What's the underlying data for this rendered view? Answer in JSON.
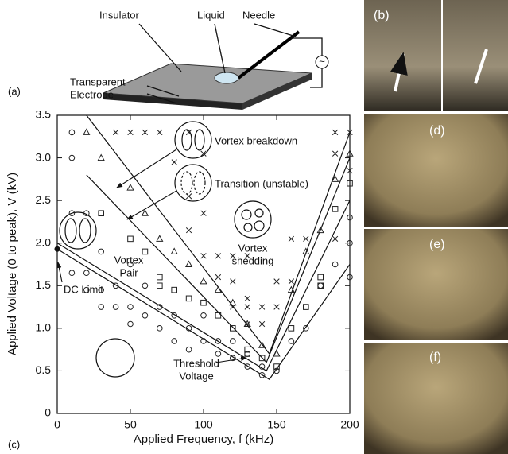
{
  "chart_data": {
    "type": "scatter",
    "xlabel": "Applied Frequency, f (kHz)",
    "ylabel": "Applied Voltage (0 to peak), V (kV)",
    "xlim": [
      0,
      200
    ],
    "ylim": [
      0,
      3.5
    ],
    "xticks": [
      0,
      50,
      100,
      150,
      200
    ],
    "yticks": [
      0,
      0.5,
      {
        "value": 1,
        "label": "1.0"
      },
      1.5,
      {
        "value": 2,
        "label": "2.0"
      },
      2.5,
      {
        "value": 3,
        "label": "3.0"
      },
      3.5
    ],
    "series": [
      {
        "marker": "circle",
        "color": "#222",
        "x": [
          10,
          10,
          10,
          10,
          20,
          20,
          20,
          30,
          30,
          30,
          40,
          40,
          50,
          50,
          50,
          60,
          60,
          70,
          70,
          80,
          80,
          90,
          90,
          100,
          100,
          110,
          110,
          120,
          120,
          130,
          130,
          140,
          140,
          150,
          160,
          170,
          180,
          190,
          200,
          200,
          200
        ],
        "y": [
          3.3,
          3.0,
          2.35,
          1.65,
          2.35,
          1.65,
          1.45,
          1.9,
          1.45,
          1.25,
          1.5,
          1.25,
          1.75,
          1.25,
          1.05,
          1.5,
          1.15,
          1.25,
          1.0,
          1.15,
          0.85,
          1.0,
          0.75,
          1.15,
          0.85,
          0.85,
          0.7,
          0.85,
          0.65,
          0.7,
          0.55,
          0.55,
          0.45,
          0.5,
          0.85,
          1.0,
          1.5,
          1.75,
          2.3,
          2.0,
          1.6
        ]
      },
      {
        "marker": "square",
        "color": "#222",
        "x": [
          30,
          50,
          60,
          70,
          70,
          80,
          90,
          100,
          110,
          120,
          130,
          130,
          140,
          150,
          160,
          170,
          180,
          180,
          190,
          200
        ],
        "y": [
          2.35,
          2.05,
          1.9,
          1.6,
          1.5,
          1.45,
          1.35,
          1.3,
          1.15,
          1.0,
          0.75,
          0.7,
          0.65,
          0.55,
          1.0,
          1.25,
          1.6,
          1.5,
          2.4,
          2.7
        ]
      },
      {
        "marker": "triangle",
        "color": "#222",
        "x": [
          20,
          30,
          50,
          60,
          70,
          80,
          90,
          100,
          110,
          120,
          130,
          140,
          150,
          160,
          170,
          180,
          190,
          200
        ],
        "y": [
          3.3,
          3.0,
          2.65,
          2.35,
          2.05,
          1.9,
          1.75,
          1.55,
          1.45,
          1.3,
          1.05,
          0.8,
          0.7,
          1.45,
          1.9,
          2.15,
          2.75,
          3.05
        ]
      },
      {
        "marker": "cross",
        "color": "#222",
        "x": [
          40,
          50,
          60,
          70,
          90,
          100,
          80,
          90,
          100,
          90,
          100,
          110,
          120,
          130,
          110,
          120,
          130,
          140,
          120,
          130,
          140,
          130,
          190,
          200,
          190,
          200,
          160,
          170,
          190,
          150,
          160,
          150
        ],
        "y": [
          3.3,
          3.3,
          3.3,
          3.3,
          3.3,
          3.05,
          2.95,
          2.55,
          2.35,
          2.15,
          1.85,
          1.85,
          1.85,
          1.85,
          1.6,
          1.55,
          1.25,
          1.25,
          1.25,
          1.05,
          1.05,
          1.35,
          3.3,
          3.3,
          3.05,
          2.85,
          2.05,
          2.05,
          2.05,
          1.55,
          1.55,
          1.25
        ]
      }
    ],
    "boundaries": [
      {
        "x": [
          0,
          145,
          200
        ],
        "y": [
          1.93,
          0.4,
          1.75
        ]
      },
      {
        "x": [
          0,
          143,
          200
        ],
        "y": [
          2.0,
          0.5,
          2.5
        ]
      },
      {
        "x": [
          20,
          143,
          200
        ],
        "y": [
          2.8,
          0.6,
          3.0
        ]
      },
      {
        "x": [
          20,
          145,
          200
        ],
        "y": [
          3.5,
          0.7,
          3.3
        ]
      }
    ],
    "annotations": {
      "breakdown": "Vortex breakdown",
      "transition": "Transition (unstable)",
      "pair": [
        "Vortex",
        "Pair"
      ],
      "shedding": [
        "Vortex",
        "shedding"
      ],
      "dc_limit": "DC Limit",
      "threshold": [
        "Threshold",
        "Voltage"
      ]
    },
    "dc_point": {
      "x": 0,
      "y": 1.93
    }
  },
  "schematic": {
    "insulator": "Insulator",
    "liquid": "Liquid",
    "needle": "Needle",
    "electrode": [
      "Transparent",
      "Electrode"
    ],
    "source": "~"
  },
  "panels": {
    "a": "(a)",
    "b": "(b)",
    "c": "(c)",
    "d": "(d)",
    "e": "(e)",
    "f": "(f)"
  }
}
